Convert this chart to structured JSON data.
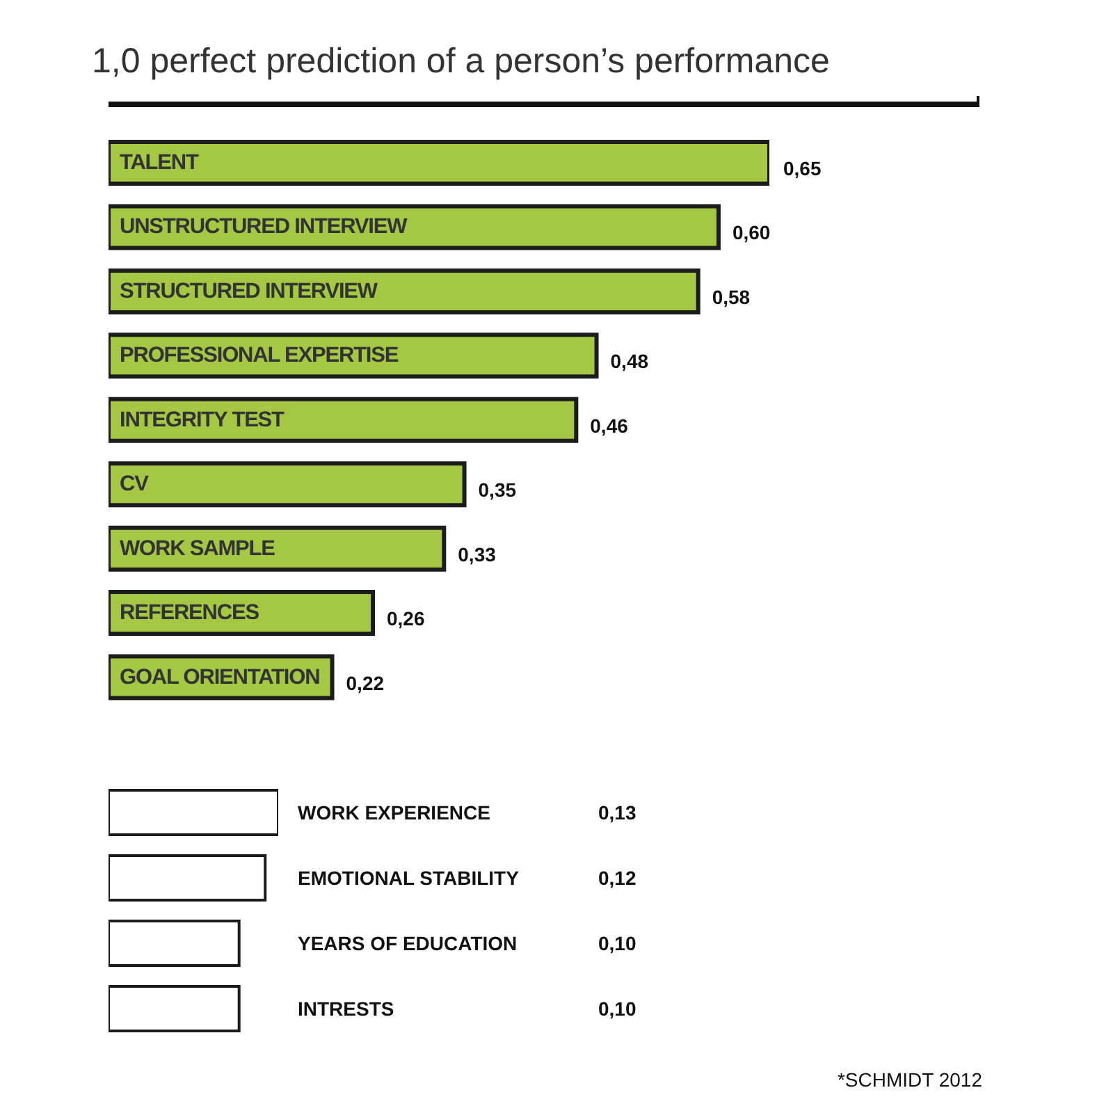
{
  "chart_data": [
    {
      "type": "bar",
      "orientation": "horizontal",
      "title": "1,0 perfect prediction of a person’s performance",
      "categories": [
        "TALENT",
        "UNSTRUCTURED INTERVIEW",
        "STRUCTURED INTERVIEW",
        "PROFESSIONAL EXPERTISE",
        "INTEGRITY TEST",
        "CV",
        "WORK SAMPLE",
        "REFERENCES",
        "GOAL ORIENTATION"
      ],
      "values": [
        0.65,
        0.6,
        0.58,
        0.48,
        0.46,
        0.35,
        0.33,
        0.26,
        0.22
      ],
      "value_labels": [
        "0,65",
        "0,60",
        "0,58",
        "0,48",
        "0,46",
        "0,35",
        "0,33",
        "0,26",
        "0,22"
      ],
      "color": "#a5c844",
      "tick_labels": false
    },
    {
      "type": "bar",
      "orientation": "horizontal",
      "categories": [
        "WORK EXPERIENCE",
        "EMOTIONAL STABILITY",
        "YEARS OF EDUCATION",
        "INTRESTS"
      ],
      "values": [
        0.13,
        0.12,
        0.1,
        0.1
      ],
      "value_labels": [
        "0,13",
        "0,12",
        "0,10",
        "0,10"
      ],
      "color": "#ffffff",
      "tick_labels": false,
      "annotations": [
        "*SCHMIDT 2012"
      ]
    }
  ]
}
